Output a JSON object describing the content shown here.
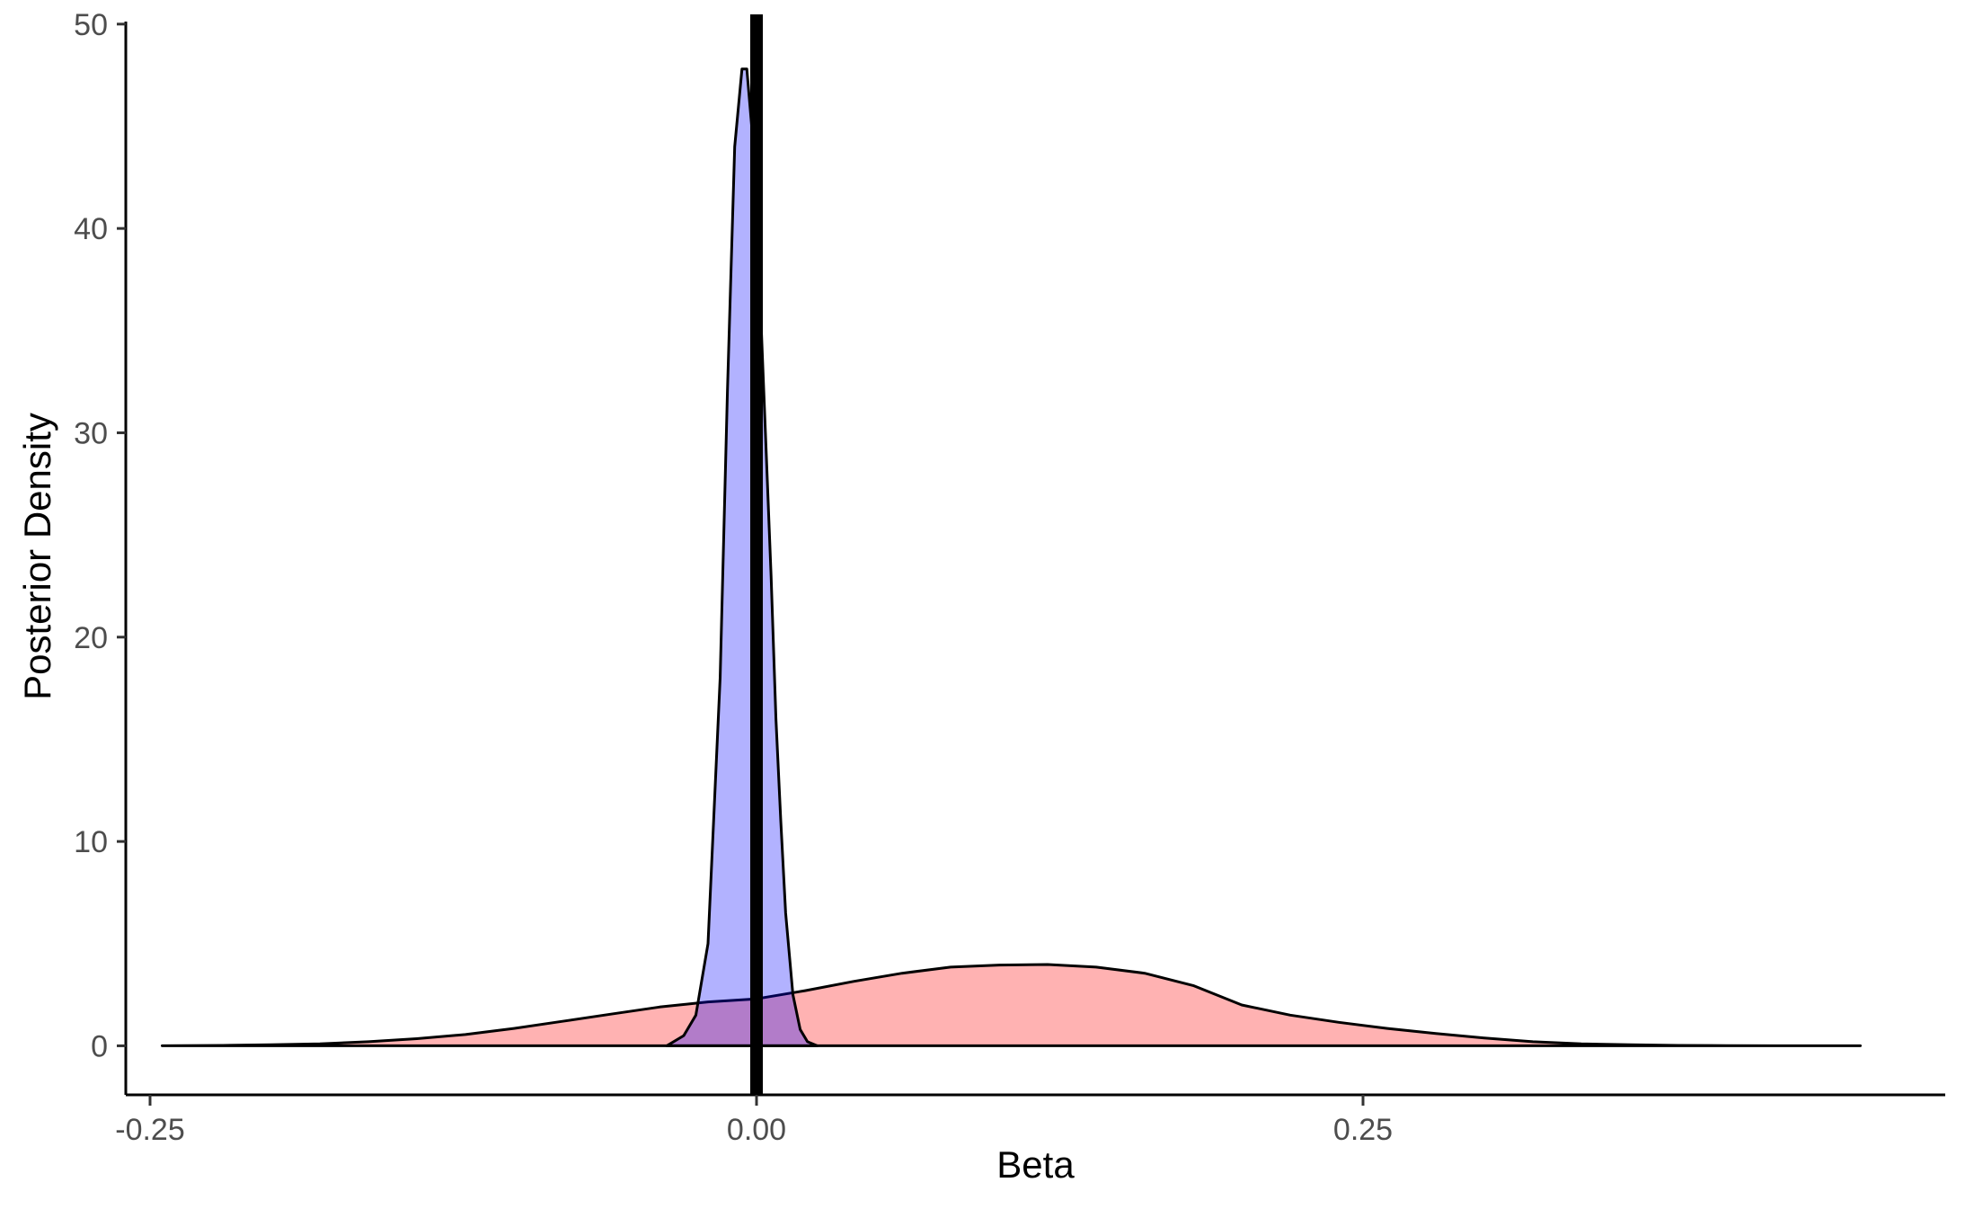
{
  "chart_data": {
    "type": "area",
    "title": "",
    "xlabel": "Beta",
    "ylabel": "Posterior Density",
    "xlim": [
      -0.26,
      0.49
    ],
    "ylim": [
      -2.4,
      50.3
    ],
    "x_ticks": [
      -0.25,
      0.0,
      0.25
    ],
    "x_tick_labels": [
      "-0.25",
      "0.00",
      "0.25"
    ],
    "y_ticks": [
      0,
      10,
      20,
      30,
      40,
      50
    ],
    "y_tick_labels": [
      "0",
      "10",
      "20",
      "30",
      "40",
      "50"
    ],
    "grid": false,
    "legend": "none",
    "reference_line": {
      "x": 0.0,
      "color": "#000000"
    },
    "series": [
      {
        "fill": "#ff0000",
        "fill_opacity": 0.3,
        "x": [
          -0.245,
          -0.22,
          -0.2,
          -0.18,
          -0.16,
          -0.14,
          -0.12,
          -0.1,
          -0.08,
          -0.06,
          -0.04,
          -0.02,
          0.0,
          0.02,
          0.04,
          0.06,
          0.08,
          0.1,
          0.12,
          0.14,
          0.16,
          0.18,
          0.2,
          0.22,
          0.24,
          0.26,
          0.28,
          0.3,
          0.32,
          0.34,
          0.36,
          0.38,
          0.4,
          0.42,
          0.455
        ],
        "y": [
          0,
          0.02,
          0.05,
          0.1,
          0.2,
          0.35,
          0.55,
          0.85,
          1.2,
          1.55,
          1.9,
          2.15,
          2.3,
          2.7,
          3.15,
          3.55,
          3.85,
          3.95,
          3.98,
          3.85,
          3.55,
          2.95,
          2.0,
          1.5,
          1.15,
          0.85,
          0.6,
          0.38,
          0.2,
          0.1,
          0.05,
          0.02,
          0.01,
          0.0,
          0
        ]
      },
      {
        "fill": "#0000ff",
        "fill_opacity": 0.3,
        "x": [
          -0.037,
          -0.03,
          -0.025,
          -0.02,
          -0.015,
          -0.012,
          -0.009,
          -0.006,
          -0.004,
          -0.002,
          0.0,
          0.002,
          0.004,
          0.006,
          0.008,
          0.01,
          0.012,
          0.015,
          0.018,
          0.021,
          0.025
        ],
        "y": [
          0,
          0.5,
          1.5,
          5.0,
          18.0,
          32.0,
          44.0,
          47.8,
          47.8,
          45.0,
          41.0,
          35.0,
          29.0,
          23.0,
          16.0,
          11.0,
          6.5,
          2.5,
          0.8,
          0.2,
          0
        ]
      }
    ]
  }
}
